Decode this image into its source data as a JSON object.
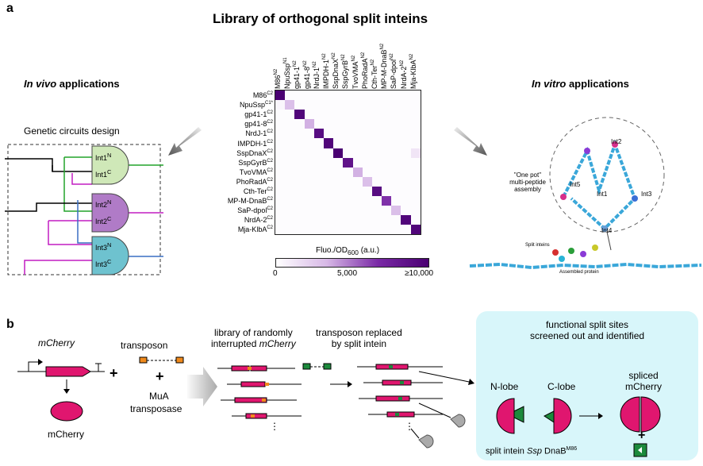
{
  "panel_a": {
    "letter": "a",
    "title": "Library of orthogonal split inteins",
    "in_vivo": {
      "italic": "In vivo",
      "rest": " applications"
    },
    "in_vitro": {
      "italic": "In vitro",
      "rest": " applications"
    },
    "circuit_title": "Genetic circuits design",
    "gates": [
      {
        "n": "Int1",
        "n_sup": "N",
        "c": "Int1",
        "c_sup": "C",
        "color": "#cfe8b8"
      },
      {
        "n": "Int2",
        "n_sup": "N",
        "c": "Int2",
        "c_sup": "C",
        "color": "#b07bc7"
      },
      {
        "n": "Int3",
        "n_sup": "N",
        "c": "Int3",
        "c_sup": "C",
        "color": "#6ec2cf"
      }
    ],
    "heatmap": {
      "rows": [
        {
          "name": "M86",
          "sup": "C2"
        },
        {
          "name": "NpuSsp",
          "sup": "C1*"
        },
        {
          "name": "gp41-1",
          "sup": "C2"
        },
        {
          "name": "gp41-8",
          "sup": "C2"
        },
        {
          "name": "NrdJ-1",
          "sup": "C2"
        },
        {
          "name": "IMPDH-1",
          "sup": "C2"
        },
        {
          "name": "SspDnaX",
          "sup": "C2"
        },
        {
          "name": "SspGyrB",
          "sup": "C2"
        },
        {
          "name": "TvoVMA",
          "sup": "C2"
        },
        {
          "name": "PhoRadA",
          "sup": "C2"
        },
        {
          "name": "Cth-Ter",
          "sup": "C2"
        },
        {
          "name": "MP-M-DnaB",
          "sup": "C2"
        },
        {
          "name": "SaP-dpol",
          "sup": "C2"
        },
        {
          "name": "NrdA-2",
          "sup": "C2"
        },
        {
          "name": "Mja-KlbA",
          "sup": "C2"
        }
      ],
      "cols": [
        {
          "name": "M86",
          "sup": "N2"
        },
        {
          "name": "NpuSsp",
          "sup": "N1"
        },
        {
          "name": "gp41-1",
          "sup": "N2"
        },
        {
          "name": "gp41-8",
          "sup": "N2"
        },
        {
          "name": "NrdJ-1",
          "sup": "N2"
        },
        {
          "name": "IMPDH-1",
          "sup": "N2"
        },
        {
          "name": "SspDnaX",
          "sup": "N2"
        },
        {
          "name": "SspGyrB",
          "sup": "N2"
        },
        {
          "name": "TvoVMA",
          "sup": "N2"
        },
        {
          "name": "PhoRadA",
          "sup": "N2"
        },
        {
          "name": "Cth-Ter",
          "sup": "N2"
        },
        {
          "name": "MP-M-DnaB",
          "sup": "N2"
        },
        {
          "name": "SaP-dpol",
          "sup": "N2"
        },
        {
          "name": "NrdA-2",
          "sup": "N2"
        },
        {
          "name": "Mja-KlbA",
          "sup": "N2"
        }
      ],
      "diagonal_values": [
        10000,
        3000,
        9500,
        3500,
        9000,
        9500,
        10000,
        8500,
        3500,
        3000,
        9000,
        6500,
        3000,
        9500,
        9500
      ],
      "off_diagonal": [
        {
          "row": 6,
          "col": 14,
          "value": 1200
        },
        {
          "row": 1,
          "col": 0,
          "value": 400
        }
      ],
      "colorbar_label": "Fluo./OD",
      "colorbar_sub": "600",
      "colorbar_unit": " (a.u.)",
      "ticks": [
        "0",
        "5,000",
        "≥10,000"
      ],
      "colors": {
        "low": "#ffffff",
        "mid": "#d7b8e6",
        "high": "#4a0072"
      }
    },
    "vitro": {
      "one_pot": "\"One pot\"",
      "multi": "multi-peptide",
      "assembly": "assembly",
      "ints": [
        "Int1",
        "Int2",
        "Int3",
        "Int4",
        "Int5"
      ],
      "split_inteins": "Split inteins",
      "assembled": "Assembled protein"
    }
  },
  "panel_b": {
    "letter": "b",
    "mcherry_gene": "mCherry",
    "mcherry_protein": "mCherry",
    "plus": "+",
    "transposon": "transposon",
    "mua": "MuA",
    "transposase": "transposase",
    "library_line1": "library of randomly",
    "library_line2": "interrupted ",
    "library_italic": "mCherry",
    "replaced_line1": "transposon replaced",
    "replaced_line2": "by split intein",
    "screen_line1": "functional split sites",
    "screen_line2": "screened out and identified",
    "n_lobe": "N-lobe",
    "c_lobe": "C-lobe",
    "spliced1": "spliced",
    "spliced2": "mCherry",
    "split_intein_a": "split intein ",
    "split_intein_b": "Ssp",
    "split_intein_c": " DnaB",
    "split_intein_sup": "M86",
    "ellipsis": "⋮",
    "colors": {
      "pink": "#e0166f",
      "orange": "#f08a1c",
      "green": "#1c8a3c",
      "screen_bg": "#d8f6fa"
    }
  }
}
